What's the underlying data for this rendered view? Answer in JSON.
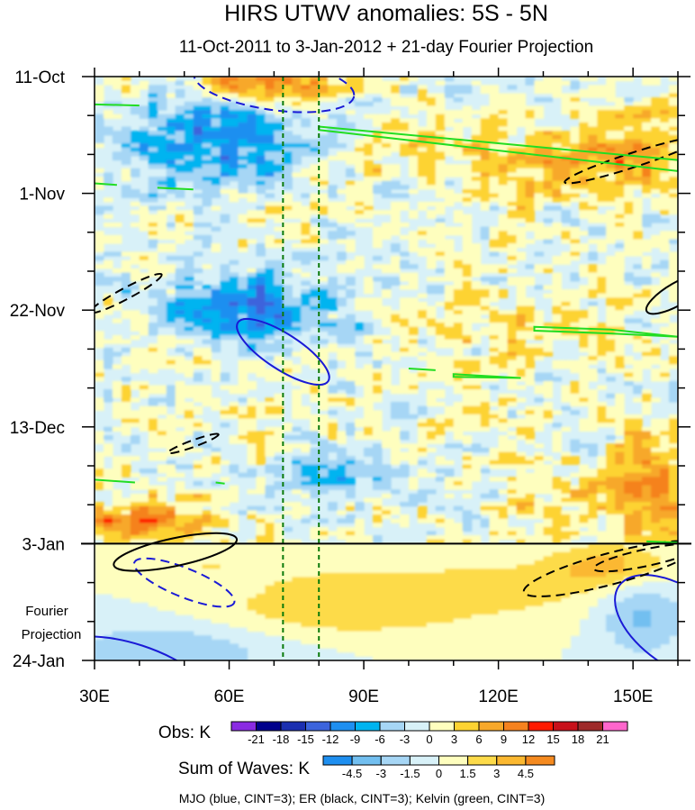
{
  "chart_data": {
    "type": "heatmap",
    "title": "HIRS UTWV anomalies: 5S - 5N",
    "subtitle": "11-Oct-2011 to 3-Jan-2012 + 21-day Fourier Projection",
    "xlabel": "",
    "ylabel": "",
    "x_ticks": [
      "30E",
      "60E",
      "90E",
      "120E",
      "150E"
    ],
    "x_tick_values": [
      30,
      60,
      90,
      120,
      150
    ],
    "xlim": [
      30,
      160
    ],
    "y_ticks": [
      "11-Oct",
      "1-Nov",
      "22-Nov",
      "13-Dec",
      "3-Jan",
      "24-Jan"
    ],
    "y_tick_days": [
      0,
      21,
      42,
      63,
      84,
      105
    ],
    "ylim_days": [
      0,
      105
    ],
    "projection_start_day": 84,
    "projection_label": [
      "Fourier",
      "Projection"
    ],
    "reference_lines_lon": [
      72,
      80
    ],
    "obs_legend": {
      "label": "Obs: K",
      "levels": [
        "-21",
        "-18",
        "-15",
        "-12",
        "-9",
        "-6",
        "-3",
        "0",
        "3",
        "6",
        "9",
        "12",
        "15",
        "18",
        "21"
      ],
      "colors": [
        "#8a2be2",
        "#00008b",
        "#1b2fb0",
        "#3c64dc",
        "#1e8ff0",
        "#00b4f0",
        "#a6d6f5",
        "#d8f1f8",
        "#fefebe",
        "#fdd332",
        "#f7a82b",
        "#f5821f",
        "#ff1a00",
        "#c8101a",
        "#9e2a2a",
        "#ff66cc"
      ]
    },
    "waves_legend": {
      "label": "Sum of Waves: K",
      "levels": [
        "-4.5",
        "-3",
        "-1.5",
        "0",
        "1.5",
        "3",
        "4.5"
      ],
      "colors": [
        "#1e8ff0",
        "#72bff0",
        "#a6d6f5",
        "#d8f1f8",
        "#fefebe",
        "#fddb4a",
        "#fbb830",
        "#f58a1f"
      ]
    },
    "contour_note": "MJO (blue, CINT=3); ER (black, CINT=3); Kelvin (green, CINT=3)",
    "contour_colors": {
      "mjo": "#1a1ad6",
      "er": "#000000",
      "kelvin": "#22dd22",
      "reference": "#0a7a0a"
    }
  }
}
